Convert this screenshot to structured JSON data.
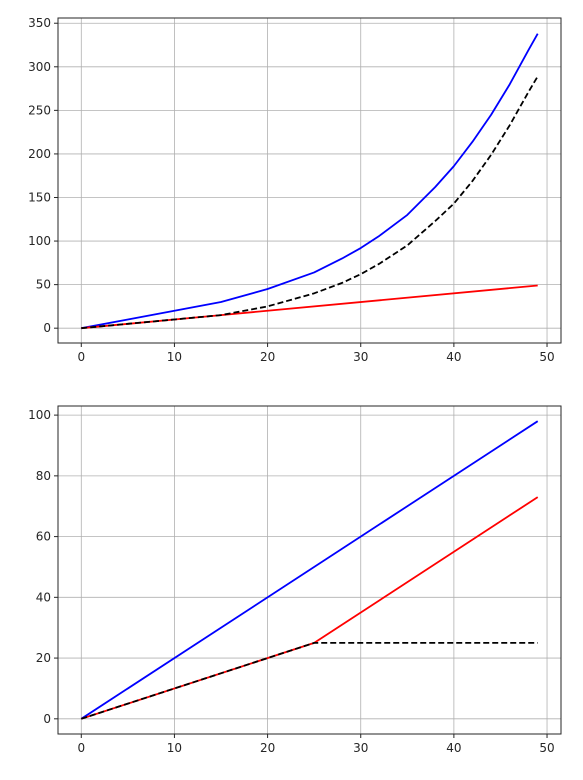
{
  "figure": {
    "background": "#ffffff",
    "grid_color": "#b0b0b0",
    "axis_color": "#262626"
  },
  "chart_data": [
    {
      "type": "line",
      "title": "",
      "xlabel": "",
      "ylabel": "",
      "xlim": [
        -2.5,
        51.5
      ],
      "ylim": [
        -17,
        356
      ],
      "grid": true,
      "xticks": [
        0,
        10,
        20,
        30,
        40,
        50
      ],
      "yticks": [
        0,
        50,
        100,
        150,
        200,
        250,
        300,
        350
      ],
      "series": [
        {
          "color": "#0000ff",
          "style": "solid",
          "x": [
            0,
            5,
            10,
            15,
            20,
            25,
            28,
            30,
            32,
            35,
            38,
            40,
            42,
            44,
            46,
            48,
            49
          ],
          "y": [
            0,
            10,
            20,
            30,
            45,
            64,
            80,
            92,
            106,
            130,
            162,
            186,
            214,
            245,
            280,
            319,
            338
          ]
        },
        {
          "color": "#ff0000",
          "style": "solid",
          "x": [
            0,
            15,
            49
          ],
          "y": [
            0,
            15,
            49
          ]
        },
        {
          "color": "#000000",
          "style": "dashed",
          "x": [
            0,
            5,
            10,
            15,
            20,
            25,
            28,
            30,
            32,
            35,
            38,
            40,
            42,
            44,
            46,
            48,
            49
          ],
          "y": [
            0,
            5,
            10,
            15,
            25,
            40,
            52,
            62,
            74,
            95,
            123,
            143,
            169,
            199,
            233,
            271,
            289
          ]
        }
      ]
    },
    {
      "type": "line",
      "title": "",
      "xlabel": "",
      "ylabel": "",
      "xlim": [
        -2.5,
        51.5
      ],
      "ylim": [
        -5,
        103
      ],
      "grid": true,
      "xticks": [
        0,
        10,
        20,
        30,
        40,
        50
      ],
      "yticks": [
        0,
        20,
        40,
        60,
        80,
        100
      ],
      "series": [
        {
          "color": "#0000ff",
          "style": "solid",
          "x": [
            0,
            49
          ],
          "y": [
            0,
            98
          ]
        },
        {
          "color": "#ff0000",
          "style": "solid",
          "x": [
            0,
            25,
            49
          ],
          "y": [
            0,
            25,
            73
          ]
        },
        {
          "color": "#000000",
          "style": "dashed",
          "x": [
            0,
            25,
            49
          ],
          "y": [
            0,
            25,
            25
          ]
        }
      ]
    }
  ]
}
